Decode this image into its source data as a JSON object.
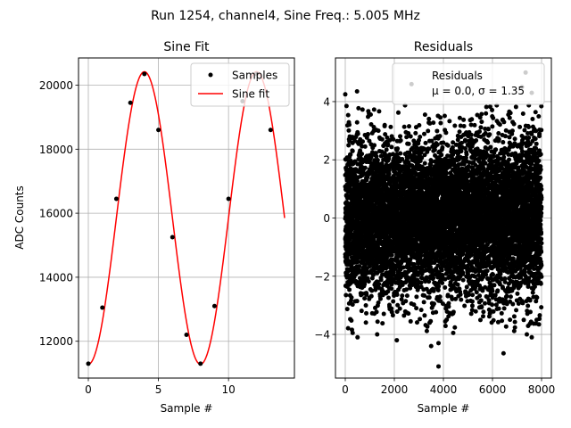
{
  "suptitle": "Run 1254, channel4, Sine Freq.: 5.005 MHz",
  "chart_data": [
    {
      "type": "line",
      "title": "Sine Fit",
      "xlabel": "Sample #",
      "ylabel": "ADC Counts",
      "xlim": [
        -0.7,
        14.7
      ],
      "ylim": [
        10850,
        20850
      ],
      "xticks": [
        0,
        5,
        10
      ],
      "yticks": [
        12000,
        14000,
        16000,
        18000,
        20000
      ],
      "grid": true,
      "legend_position": "top-right",
      "colors": {
        "samples": "#000000",
        "fit": "#ff0000"
      },
      "series": [
        {
          "name": "Samples",
          "kind": "points",
          "x": [
            0,
            1,
            2,
            3,
            4,
            5,
            6,
            7,
            8,
            9,
            10,
            11,
            12,
            13
          ],
          "y": [
            11300,
            13050,
            16450,
            19450,
            20350,
            18600,
            15250,
            12200,
            11300,
            13100,
            16450,
            19500,
            20350,
            18600
          ]
        },
        {
          "name": "Sine fit",
          "kind": "line",
          "model": {
            "offset": 15850,
            "amplitude": 4570,
            "period": 8.0,
            "phase_sample": 4,
            "x_start": 0,
            "x_end": 14
          }
        }
      ]
    },
    {
      "type": "scatter",
      "title": "Residuals",
      "xlabel": "Sample #",
      "ylabel": "",
      "xlim": [
        -400,
        8400
      ],
      "ylim": [
        -5.5,
        5.5
      ],
      "xticks": [
        0,
        2000,
        4000,
        6000,
        8000
      ],
      "yticks": [
        -4,
        -2,
        0,
        2,
        4
      ],
      "grid": true,
      "legend_position": "top-right",
      "colors": {
        "points": "#000000"
      },
      "n_points": 8000,
      "stats": {
        "mu": 0.0,
        "sigma": 1.35
      },
      "notable_points": [
        {
          "x": 0,
          "y": 4.25
        },
        {
          "x": 50,
          "y": 3.85
        },
        {
          "x": 480,
          "y": 4.35
        },
        {
          "x": 300,
          "y": -3.95
        },
        {
          "x": 500,
          "y": -4.1
        },
        {
          "x": 1300,
          "y": -4.0
        },
        {
          "x": 2100,
          "y": -4.2
        },
        {
          "x": 2700,
          "y": 4.6
        },
        {
          "x": 3500,
          "y": -4.4
        },
        {
          "x": 3800,
          "y": -4.3
        },
        {
          "x": 3800,
          "y": -5.1
        },
        {
          "x": 4400,
          "y": -3.95
        },
        {
          "x": 7350,
          "y": 5.0
        },
        {
          "x": 7200,
          "y": 4.5
        },
        {
          "x": 7600,
          "y": 4.3
        },
        {
          "x": 6450,
          "y": -4.65
        },
        {
          "x": 7400,
          "y": -4.0
        },
        {
          "x": 7600,
          "y": -4.1
        },
        {
          "x": 7800,
          "y": -3.5
        }
      ],
      "legend": {
        "label": "Residuals",
        "stats_text": "μ = 0.0, σ = 1.35"
      }
    }
  ]
}
